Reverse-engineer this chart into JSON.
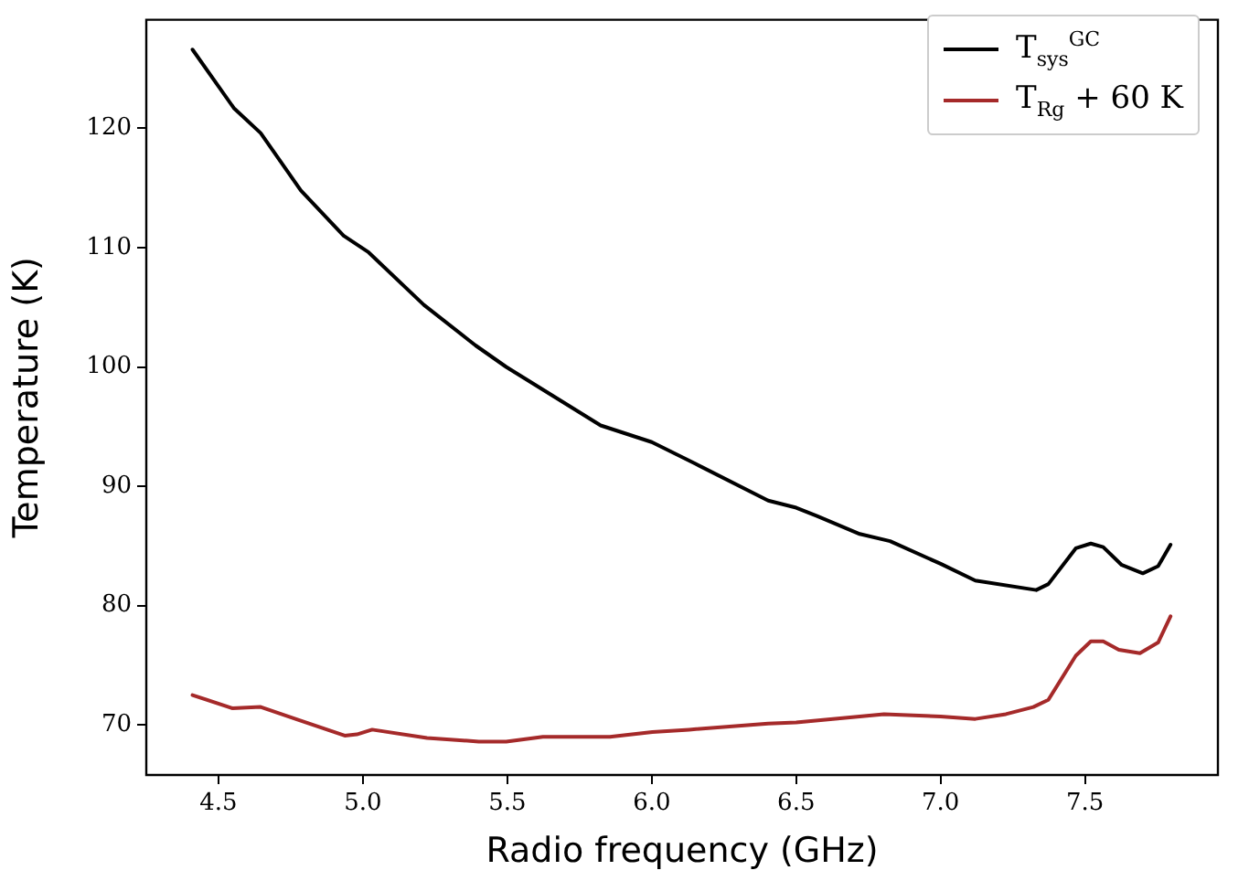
{
  "chart_data": {
    "type": "line",
    "xlabel": "Radio frequency (GHz)",
    "ylabel": "Temperature (K)",
    "xlim": [
      4.25,
      7.96
    ],
    "ylim": [
      65.8,
      129.1
    ],
    "xticks": [
      4.5,
      {
        "value": 5,
        "label": "5.0"
      },
      5.5,
      {
        "value": 6,
        "label": "6.0"
      },
      6.5,
      {
        "value": 7,
        "label": "7.0"
      },
      7.5
    ],
    "yticks": [
      70,
      80,
      90,
      100,
      110,
      120
    ],
    "grid": false,
    "legend": "top right",
    "marker": "none",
    "line_style": "solid",
    "series": [
      {
        "name": "T$_{sys}$$^{GC}$",
        "color": "#000000",
        "x": [
          4.41,
          4.553,
          4.646,
          4.785,
          4.933,
          5.02,
          5.211,
          5.39,
          5.496,
          5.823,
          6.0,
          6.15,
          6.403,
          6.5,
          6.572,
          6.72,
          6.825,
          7.0,
          7.12,
          7.331,
          7.373,
          7.468,
          7.52,
          7.563,
          7.627,
          7.7,
          7.753,
          7.796
        ],
        "values": [
          126.6,
          121.7,
          119.6,
          114.8,
          111.0,
          109.6,
          105.2,
          101.8,
          100.0,
          95.1,
          93.7,
          91.9,
          88.8,
          88.2,
          87.5,
          86.0,
          85.4,
          83.5,
          82.1,
          81.3,
          81.8,
          84.8,
          85.2,
          84.9,
          83.4,
          82.7,
          83.3,
          85.1
        ]
      },
      {
        "name": "T$_{Rg}$ + 60 K",
        "color": "#a52a2a",
        "x": [
          4.41,
          4.547,
          4.646,
          4.778,
          4.937,
          4.979,
          5.032,
          5.222,
          5.401,
          5.496,
          5.623,
          5.855,
          6.002,
          6.129,
          6.403,
          6.5,
          6.804,
          7.0,
          7.12,
          7.226,
          7.321,
          7.373,
          7.468,
          7.52,
          7.563,
          7.617,
          7.69,
          7.753,
          7.796
        ],
        "values": [
          72.5,
          71.4,
          71.5,
          70.4,
          69.1,
          69.2,
          69.6,
          68.9,
          68.6,
          68.6,
          69.0,
          69.0,
          69.4,
          69.6,
          70.1,
          70.2,
          70.9,
          70.7,
          70.5,
          70.9,
          71.5,
          72.1,
          75.8,
          77.0,
          77.0,
          76.3,
          76.0,
          76.9,
          79.1
        ]
      }
    ]
  }
}
